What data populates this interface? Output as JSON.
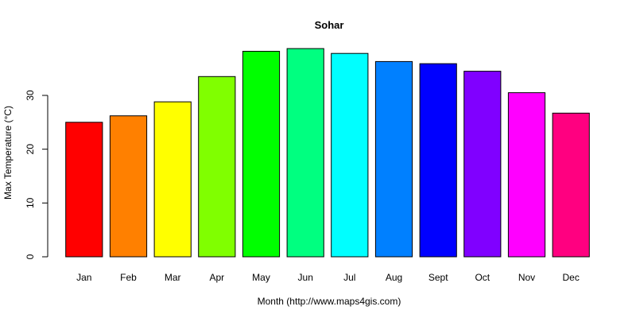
{
  "chart_data": {
    "type": "bar",
    "title": "Sohar",
    "xlabel": "Month (http://www.maps4gis.com)",
    "ylabel": "Max Temperature (°C)",
    "categories": [
      "Jan",
      "Feb",
      "Mar",
      "Apr",
      "May",
      "Jun",
      "Jul",
      "Aug",
      "Sept",
      "Oct",
      "Nov",
      "Dec"
    ],
    "values": [
      25.0,
      26.2,
      28.8,
      33.5,
      38.2,
      38.7,
      37.8,
      36.3,
      35.9,
      34.5,
      30.5,
      26.7
    ],
    "colors": [
      "#FF0000",
      "#FF8000",
      "#FFFF00",
      "#80FF00",
      "#00FF00",
      "#00FF80",
      "#00FFFF",
      "#0080FF",
      "#0000FF",
      "#8000FF",
      "#FF00FF",
      "#FF0080"
    ],
    "yticks": [
      0,
      10,
      20,
      30
    ],
    "ylim": [
      0,
      40
    ],
    "grid": false,
    "legend": "none"
  }
}
